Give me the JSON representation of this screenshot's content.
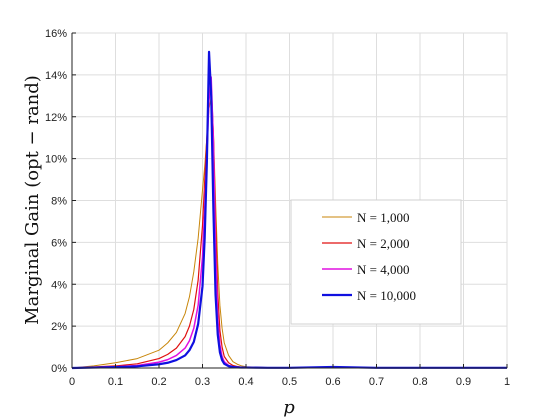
{
  "chart_data": {
    "type": "line",
    "title": "",
    "xlabel": "p",
    "ylabel": "Marginal Gain (opt − rand)",
    "xlim": [
      0,
      1
    ],
    "ylim": [
      0,
      16
    ],
    "xticks": [
      0,
      0.1,
      0.2,
      0.3,
      0.4,
      0.5,
      0.6,
      0.7,
      0.8,
      0.9,
      1
    ],
    "xtick_labels": [
      "0",
      "0.1",
      "0.2",
      "0.3",
      "0.4",
      "0.5",
      "0.6",
      "0.7",
      "0.8",
      "0.9",
      "1"
    ],
    "yticks": [
      0,
      2,
      4,
      6,
      8,
      10,
      12,
      14,
      16
    ],
    "ytick_labels": [
      "0%",
      "2%",
      "4%",
      "6%",
      "8%",
      "10%",
      "12%",
      "14%",
      "16%"
    ],
    "y_unit": "%",
    "grid": true,
    "legend_position": "middle-right",
    "series": [
      {
        "name": "N =  1,000",
        "color": "#c8860a",
        "x": [
          0,
          0.05,
          0.1,
          0.15,
          0.2,
          0.22,
          0.24,
          0.26,
          0.27,
          0.28,
          0.29,
          0.3,
          0.305,
          0.31,
          0.315,
          0.32,
          0.325,
          0.33,
          0.335,
          0.34,
          0.345,
          0.35,
          0.36,
          0.37,
          0.38,
          0.39,
          0.4,
          0.45,
          0.5,
          0.6,
          0.7,
          0.8,
          0.9,
          1
        ],
        "y": [
          0,
          0.1,
          0.25,
          0.45,
          0.85,
          1.2,
          1.7,
          2.6,
          3.4,
          4.6,
          6.2,
          8.5,
          9.6,
          11.0,
          12.4,
          12.9,
          11.3,
          8.0,
          5.0,
          3.0,
          1.9,
          1.2,
          0.6,
          0.3,
          0.18,
          0.1,
          0.06,
          0.02,
          0.01,
          0.01,
          0.01,
          0.01,
          0.01,
          0.01
        ]
      },
      {
        "name": "N =  2,000",
        "color": "#e01010",
        "x": [
          0,
          0.05,
          0.1,
          0.15,
          0.2,
          0.22,
          0.24,
          0.26,
          0.27,
          0.28,
          0.29,
          0.3,
          0.305,
          0.31,
          0.315,
          0.32,
          0.325,
          0.33,
          0.335,
          0.34,
          0.345,
          0.35,
          0.36,
          0.37,
          0.38,
          0.39,
          0.4,
          0.45,
          0.5,
          0.6,
          0.7,
          0.8,
          0.9,
          1
        ],
        "y": [
          0,
          0.05,
          0.1,
          0.2,
          0.45,
          0.65,
          0.95,
          1.5,
          2.0,
          2.8,
          4.2,
          6.8,
          8.9,
          11.0,
          13.0,
          13.6,
          11.2,
          7.0,
          3.6,
          1.8,
          1.0,
          0.55,
          0.25,
          0.12,
          0.07,
          0.04,
          0.03,
          0.01,
          0.01,
          0.01,
          0.01,
          0.01,
          0.01,
          0.01
        ]
      },
      {
        "name": "N =  4,000",
        "color": "#e010e0",
        "x": [
          0,
          0.05,
          0.1,
          0.15,
          0.2,
          0.22,
          0.24,
          0.26,
          0.27,
          0.28,
          0.29,
          0.3,
          0.305,
          0.31,
          0.315,
          0.32,
          0.325,
          0.33,
          0.335,
          0.34,
          0.345,
          0.35,
          0.36,
          0.37,
          0.38,
          0.39,
          0.4,
          0.45,
          0.5,
          0.6,
          0.7,
          0.8,
          0.9,
          1
        ],
        "y": [
          0,
          0.03,
          0.06,
          0.12,
          0.28,
          0.4,
          0.6,
          0.95,
          1.3,
          1.9,
          3.0,
          5.3,
          7.6,
          10.2,
          12.8,
          13.9,
          10.8,
          5.6,
          2.4,
          1.1,
          0.55,
          0.3,
          0.12,
          0.06,
          0.04,
          0.03,
          0.02,
          0.01,
          0.01,
          0.01,
          0.01,
          0.01,
          0.01,
          0.01
        ]
      },
      {
        "name": "N = 10,000",
        "color": "#1010e0",
        "x": [
          0,
          0.05,
          0.1,
          0.15,
          0.2,
          0.22,
          0.24,
          0.26,
          0.27,
          0.28,
          0.29,
          0.3,
          0.305,
          0.31,
          0.315,
          0.32,
          0.325,
          0.33,
          0.335,
          0.34,
          0.345,
          0.35,
          0.36,
          0.37,
          0.38,
          0.39,
          0.4,
          0.45,
          0.5,
          0.6,
          0.7,
          0.8,
          0.9,
          1
        ],
        "y": [
          0,
          0.02,
          0.04,
          0.08,
          0.18,
          0.25,
          0.38,
          0.6,
          0.85,
          1.25,
          2.1,
          3.9,
          6.2,
          9.8,
          15.1,
          13.0,
          7.6,
          3.5,
          1.6,
          0.75,
          0.38,
          0.2,
          0.09,
          0.05,
          0.03,
          0.02,
          0.02,
          0.01,
          0.01,
          0.05,
          0.01,
          0.01,
          0.01,
          0.01
        ]
      }
    ]
  }
}
